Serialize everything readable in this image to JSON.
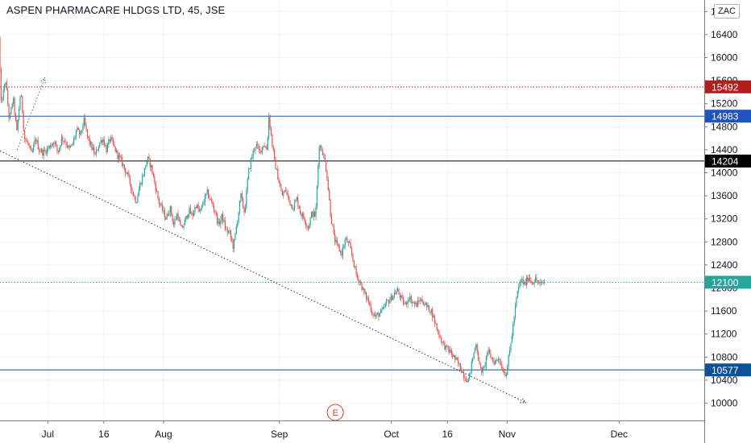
{
  "header": {
    "title": "ASPEN PHARMACARE HLDGS LTD, 45, JSE",
    "currency": "ZAC"
  },
  "colors": {
    "up": "#26a69a",
    "down": "#ef5350",
    "grid": "#f0f3fa",
    "axis_border": "#787b86"
  },
  "chart_data": {
    "type": "candlestick",
    "title": "ASPEN PHARMACARE HLDGS LTD, 45, JSE",
    "interval": "45",
    "exchange": "JSE",
    "currency": "ZAC",
    "y_ticks": [
      16800,
      16400,
      16000,
      15600,
      15200,
      14800,
      14400,
      14000,
      13600,
      13200,
      12800,
      12400,
      12000,
      11600,
      11200,
      10800,
      10400,
      10000
    ],
    "ylim": [
      9700,
      17000
    ],
    "x_ticks": [
      {
        "label": "Jul",
        "day": 0
      },
      {
        "label": "16",
        "day": 15
      },
      {
        "label": "Aug",
        "day": 31
      },
      {
        "label": "Sep",
        "day": 62
      },
      {
        "label": "Oct",
        "day": 92
      },
      {
        "label": "16",
        "day": 107
      },
      {
        "label": "Nov",
        "day": 123
      },
      {
        "label": "Dec",
        "day": 153
      }
    ],
    "xlim": [
      -12.8,
      175.8
    ],
    "price_path": [
      [
        -12.8,
        16350
      ],
      [
        -12.2,
        15200
      ],
      [
        -11,
        15600
      ],
      [
        -10,
        14900
      ],
      [
        -9,
        15300
      ],
      [
        -8,
        14700
      ],
      [
        -7,
        15400
      ],
      [
        -6.5,
        15100
      ],
      [
        -6,
        14600
      ],
      [
        -5,
        14500
      ],
      [
        -4,
        14300
      ],
      [
        -3,
        14600
      ],
      [
        -2,
        14400
      ],
      [
        -1,
        14350
      ],
      [
        0,
        14400
      ],
      [
        2,
        14550
      ],
      [
        3,
        14350
      ],
      [
        4,
        14600
      ],
      [
        5,
        14550
      ],
      [
        6,
        14400
      ],
      [
        7,
        14500
      ],
      [
        8,
        14750
      ],
      [
        9,
        14650
      ],
      [
        10,
        14900
      ],
      [
        11,
        14600
      ],
      [
        12,
        14450
      ],
      [
        13,
        14300
      ],
      [
        14,
        14500
      ],
      [
        15,
        14600
      ],
      [
        16,
        14400
      ],
      [
        17,
        14600
      ],
      [
        18,
        14450
      ],
      [
        19,
        14300
      ],
      [
        20,
        14200
      ],
      [
        21,
        14050
      ],
      [
        22,
        13900
      ],
      [
        23,
        13650
      ],
      [
        24,
        13500
      ],
      [
        25,
        13800
      ],
      [
        26,
        14000
      ],
      [
        27,
        14250
      ],
      [
        28,
        14100
      ],
      [
        29,
        13800
      ],
      [
        30,
        13500
      ],
      [
        31,
        13350
      ],
      [
        32,
        13200
      ],
      [
        33,
        13400
      ],
      [
        34,
        13100
      ],
      [
        35,
        13300
      ],
      [
        36,
        13000
      ],
      [
        37,
        13150
      ],
      [
        38,
        13350
      ],
      [
        39,
        13250
      ],
      [
        40,
        13450
      ],
      [
        41,
        13300
      ],
      [
        42,
        13500
      ],
      [
        43,
        13650
      ],
      [
        44,
        13500
      ],
      [
        45,
        13350
      ],
      [
        46,
        13100
      ],
      [
        47,
        13250
      ],
      [
        48,
        13000
      ],
      [
        49,
        12950
      ],
      [
        50,
        12700
      ],
      [
        51,
        13150
      ],
      [
        52,
        13600
      ],
      [
        53,
        13300
      ],
      [
        54,
        14000
      ],
      [
        55,
        14300
      ],
      [
        56,
        14500
      ],
      [
        57,
        14350
      ],
      [
        58,
        14500
      ],
      [
        59,
        14400
      ],
      [
        59.5,
        15000
      ],
      [
        60,
        14700
      ],
      [
        61,
        14200
      ],
      [
        62,
        13900
      ],
      [
        63,
        13600
      ],
      [
        64,
        13700
      ],
      [
        65,
        13500
      ],
      [
        66,
        13400
      ],
      [
        67,
        13550
      ],
      [
        68,
        13300
      ],
      [
        69,
        13200
      ],
      [
        70,
        13050
      ],
      [
        71,
        13300
      ],
      [
        72,
        13250
      ],
      [
        73,
        14500
      ],
      [
        74,
        14350
      ],
      [
        75,
        14000
      ],
      [
        76,
        13300
      ],
      [
        77,
        12850
      ],
      [
        78,
        12700
      ],
      [
        79,
        12600
      ],
      [
        80,
        12850
      ],
      [
        81,
        12750
      ],
      [
        82,
        12500
      ],
      [
        83,
        12200
      ],
      [
        84,
        12100
      ],
      [
        85,
        11900
      ],
      [
        86,
        11800
      ],
      [
        87,
        11600
      ],
      [
        88,
        11500
      ],
      [
        89,
        11550
      ],
      [
        90,
        11600
      ],
      [
        91,
        11750
      ],
      [
        92,
        11800
      ],
      [
        93,
        11900
      ],
      [
        94,
        11950
      ],
      [
        95,
        11800
      ],
      [
        96,
        11700
      ],
      [
        97,
        11850
      ],
      [
        98,
        11750
      ],
      [
        99,
        11700
      ],
      [
        100,
        11800
      ],
      [
        101,
        11750
      ],
      [
        102,
        11650
      ],
      [
        103,
        11600
      ],
      [
        104,
        11400
      ],
      [
        105,
        11200
      ],
      [
        106,
        11050
      ],
      [
        107,
        10950
      ],
      [
        108,
        10900
      ],
      [
        109,
        10800
      ],
      [
        110,
        10700
      ],
      [
        111,
        10600
      ],
      [
        112,
        10450
      ],
      [
        113,
        10400
      ],
      [
        114,
        10750
      ],
      [
        115,
        11050
      ],
      [
        116,
        10600
      ],
      [
        117,
        10550
      ],
      [
        118,
        10900
      ],
      [
        119,
        10800
      ],
      [
        120,
        10700
      ],
      [
        121,
        10800
      ],
      [
        122,
        10600
      ],
      [
        123,
        10500
      ],
      [
        124,
        10900
      ],
      [
        125,
        11400
      ],
      [
        126,
        11900
      ],
      [
        127,
        12150
      ],
      [
        128,
        12050
      ],
      [
        129,
        12200
      ],
      [
        130,
        12100
      ],
      [
        131,
        12150
      ],
      [
        132,
        12050
      ],
      [
        133,
        12100
      ]
    ],
    "horizontal_lines": [
      {
        "value": 15492,
        "label": "15492",
        "color": "#b71c1c",
        "style": "dotted"
      },
      {
        "value": 14983,
        "label": "14983",
        "color": "#1e53c0",
        "style": "solid"
      },
      {
        "value": 14204,
        "label": "14204",
        "color": "#000000",
        "style": "solid"
      },
      {
        "value": 12100,
        "label": "12100",
        "color": "#26a69a",
        "style": "dotted"
      },
      {
        "value": 10577,
        "label": "10577",
        "color": "#0b5394",
        "style": "solid"
      }
    ],
    "trend_lines": [
      {
        "from": [
          -12.8,
          14380
        ],
        "to": [
          128,
          10010
        ],
        "style": "dotted",
        "color": "#333333",
        "arrow_end": true
      },
      {
        "from": [
          -8.2,
          14400
        ],
        "to": [
          -0.8,
          15650
        ],
        "style": "dotted",
        "color": "#666666",
        "arrow_end": true
      }
    ],
    "events": [
      {
        "label": "E",
        "day": 77
      }
    ],
    "grid": true
  }
}
